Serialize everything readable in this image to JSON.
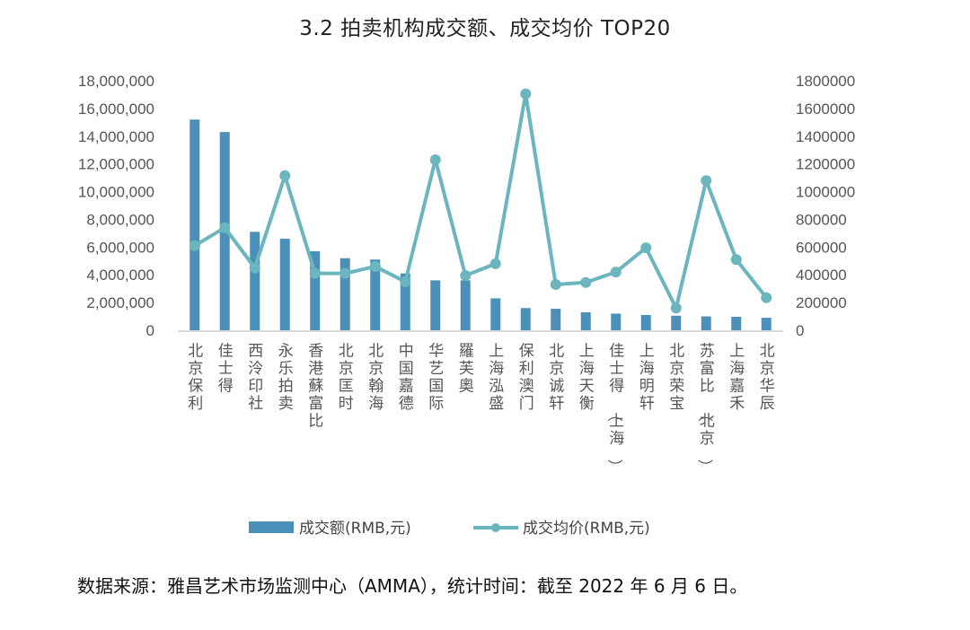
{
  "chart_data": {
    "type": "bar+line",
    "title": "3.2 拍卖机构成交额、成交均价 TOP20",
    "categories": [
      "北京保利",
      "佳士得",
      "西泠印社",
      "永乐拍卖",
      "香港蘇富比",
      "北京匡时",
      "北京翰海",
      "中国嘉德",
      "华艺国际",
      "羅芙奧",
      "上海泓盛",
      "保利澳门",
      "北京诚轩",
      "上海天衡",
      "佳士得（上海）",
      "上海明轩",
      "北京荣宝",
      "苏富比（北京）",
      "上海嘉禾",
      "北京华辰"
    ],
    "series": [
      {
        "name": "成交额(RMB,元)",
        "type": "bar",
        "axis": "left",
        "color": "#4A90B8",
        "values": [
          15200000,
          14300000,
          7100000,
          6600000,
          5700000,
          5200000,
          5100000,
          4100000,
          3600000,
          3600000,
          2300000,
          1600000,
          1550000,
          1300000,
          1200000,
          1100000,
          1050000,
          1000000,
          970000,
          900000
        ]
      },
      {
        "name": "成交均价(RMB,元)",
        "type": "line",
        "axis": "right",
        "color": "#6BB5BF",
        "values": [
          610000,
          740000,
          450000,
          1115000,
          410000,
          410000,
          460000,
          350000,
          1230000,
          395000,
          480000,
          1705000,
          330000,
          345000,
          420000,
          595000,
          160000,
          1080000,
          510000,
          235000
        ]
      }
    ],
    "left_axis": {
      "ylim": [
        0,
        18000000
      ],
      "ticks": [
        0,
        2000000,
        4000000,
        6000000,
        8000000,
        10000000,
        12000000,
        14000000,
        16000000,
        18000000
      ],
      "tick_labels": [
        "0",
        "2,000,000",
        "4,000,000",
        "6,000,000",
        "8,000,000",
        "10,000,000",
        "12,000,000",
        "14,000,000",
        "16,000,000",
        "18,000,000"
      ]
    },
    "right_axis": {
      "ylim": [
        0,
        1800000
      ],
      "ticks": [
        0,
        200000,
        400000,
        600000,
        800000,
        1000000,
        1200000,
        1400000,
        1600000,
        1800000
      ],
      "tick_labels": [
        "0",
        "200000",
        "400000",
        "600000",
        "800000",
        "1000000",
        "1200000",
        "1400000",
        "1600000",
        "1800000"
      ]
    },
    "xlabel": "",
    "ylabel": "",
    "grid": false,
    "legend": {
      "position": "bottom",
      "entries": [
        "成交额(RMB,元)",
        "成交均价(RMB,元)"
      ]
    }
  },
  "source_note": "数据来源：雅昌艺术市场监测中心（AMMA），统计时间：截至 2022 年 6 月 6 日。"
}
